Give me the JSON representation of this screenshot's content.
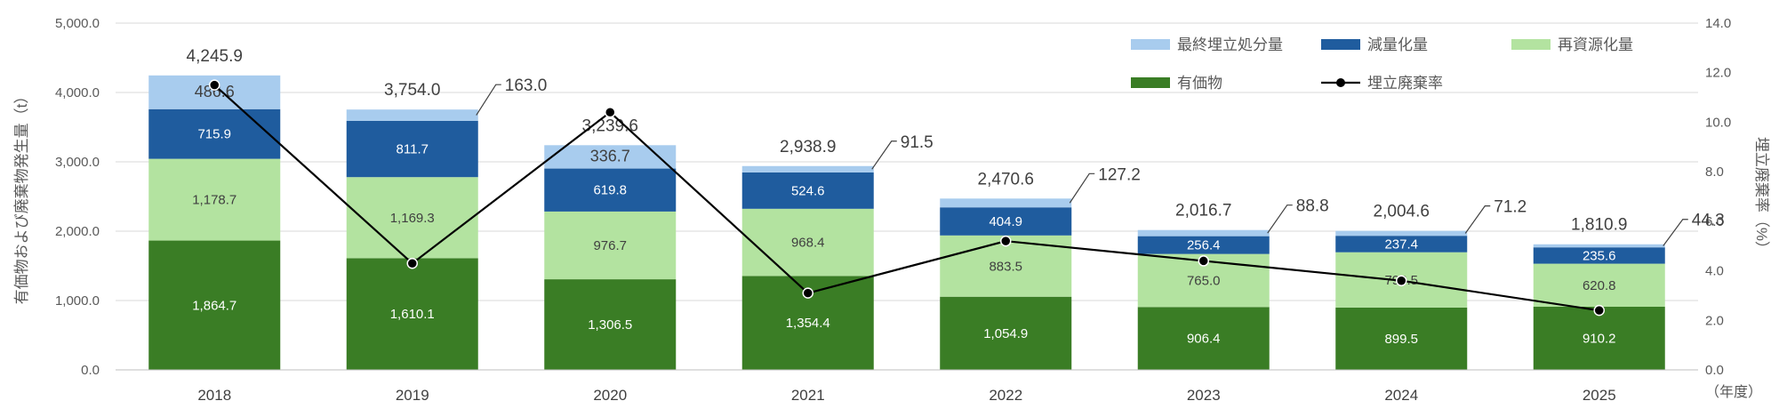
{
  "chart_data": {
    "type": "bar",
    "stacked": true,
    "categories": [
      "2018",
      "2019",
      "2020",
      "2021",
      "2022",
      "2023",
      "2024",
      "2025"
    ],
    "xlabel": "（年度）",
    "ylabel": "有価物および廃棄物発生量（t）",
    "y2label": "埋立廃棄率（%）",
    "ylim": [
      0,
      5000
    ],
    "y2lim": [
      0,
      14
    ],
    "yticks": [
      "0.0",
      "1,000.0",
      "2,000.0",
      "3,000.0",
      "4,000.0",
      "5,000.0"
    ],
    "y2ticks": [
      "0.0",
      "2.0",
      "4.0",
      "6.0",
      "8.0",
      "10.0",
      "12.0",
      "14.0"
    ],
    "grid": true,
    "legend_position": "top-right",
    "series": [
      {
        "name": "有価物",
        "color": "#3a7d25",
        "label_color": "#ffffff",
        "values": [
          1864.7,
          1610.1,
          1306.5,
          1354.4,
          1054.9,
          906.4,
          899.5,
          910.2
        ],
        "labels": [
          "1,864.7",
          "1,610.1",
          "1,306.5",
          "1,354.4",
          "1,054.9",
          "906.4",
          "899.5",
          "910.2"
        ]
      },
      {
        "name": "再資源化量",
        "color": "#b3e3a0",
        "label_color": "#404040",
        "values": [
          1178.7,
          1169.3,
          976.7,
          968.4,
          883.5,
          765.0,
          796.5,
          620.8
        ],
        "labels": [
          "1,178.7",
          "1,169.3",
          "976.7",
          "968.4",
          "883.5",
          "765.0",
          "796.5",
          "620.8"
        ]
      },
      {
        "name": "減量化量",
        "color": "#1f5c9e",
        "label_color": "#ffffff",
        "values": [
          715.9,
          811.7,
          619.8,
          524.6,
          404.9,
          256.4,
          237.4,
          235.6
        ],
        "labels": [
          "715.9",
          "811.7",
          "619.8",
          "524.6",
          "404.9",
          "256.4",
          "237.4",
          "235.6"
        ]
      },
      {
        "name": "最終埋立処分量",
        "color": "#a8ccee",
        "label_color": "#404040",
        "values": [
          486.6,
          163.0,
          336.7,
          91.5,
          127.2,
          88.8,
          71.2,
          44.3
        ],
        "labels": [
          "486.6",
          "163.0",
          "336.7",
          "91.5",
          "127.2",
          "88.8",
          "71.2",
          "44.3"
        ],
        "callout": [
          false,
          true,
          false,
          true,
          true,
          true,
          true,
          true
        ]
      }
    ],
    "totals": [
      "4,245.9",
      "3,754.0",
      "3,239.6",
      "2,938.9",
      "2,470.6",
      "2,016.7",
      "2,004.6",
      "1,810.9"
    ],
    "line": {
      "name": "埋立廃棄率",
      "axis": "y2",
      "color": "#000000",
      "values": [
        11.5,
        4.3,
        10.4,
        3.1,
        5.2,
        4.4,
        3.6,
        2.4
      ]
    },
    "legend_order": [
      "最終埋立処分量",
      "減量化量",
      "再資源化量",
      "有価物",
      "埋立廃棄率"
    ]
  }
}
